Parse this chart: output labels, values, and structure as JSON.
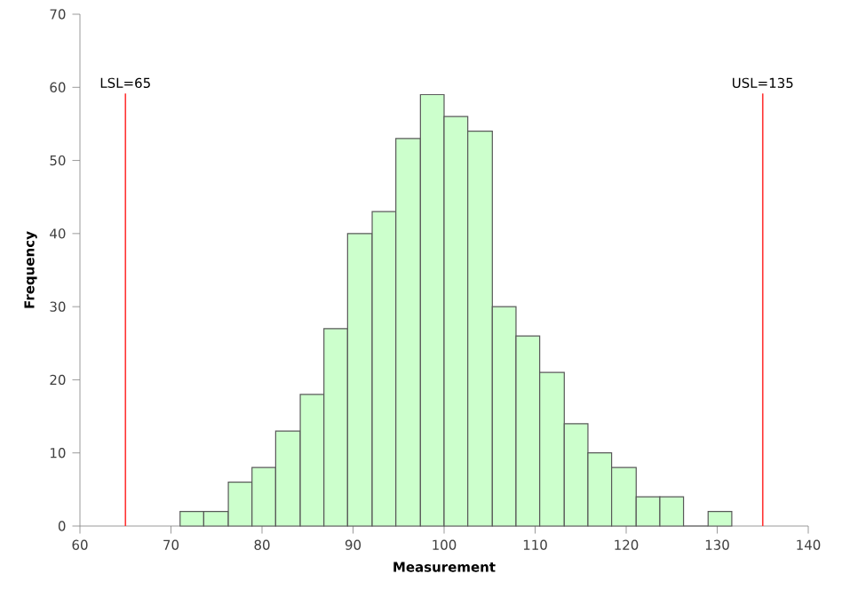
{
  "chart_data": {
    "type": "histogram",
    "xlabel": "Measurement",
    "ylabel": "Frequency",
    "bins": [
      71.0,
      73.6,
      76.3,
      78.9,
      81.5,
      84.2,
      86.8,
      89.4,
      92.1,
      94.7,
      97.4,
      100.0,
      102.6,
      105.3,
      107.9,
      110.5,
      113.2,
      115.8,
      118.4,
      121.1,
      123.7,
      126.3,
      129.0,
      131.6
    ],
    "values": [
      2,
      2,
      6,
      8,
      13,
      18,
      27,
      40,
      43,
      53,
      59,
      56,
      54,
      30,
      26,
      21,
      14,
      10,
      8,
      4,
      4,
      0,
      2
    ],
    "color": "#ccffcc",
    "xlim": [
      60,
      140
    ],
    "xticks": [
      60,
      70,
      80,
      90,
      100,
      110,
      120,
      130,
      140
    ],
    "ylim": [
      0,
      70
    ],
    "yticks": [
      0,
      10,
      20,
      30,
      40,
      50,
      60,
      70
    ],
    "ref_lines": [
      {
        "axis": "x",
        "value": 65,
        "label": "LSL=65",
        "color": "#ff3333"
      },
      {
        "axis": "x",
        "value": 135,
        "label": "USL=135",
        "color": "#ff3333"
      }
    ],
    "grid": false
  }
}
